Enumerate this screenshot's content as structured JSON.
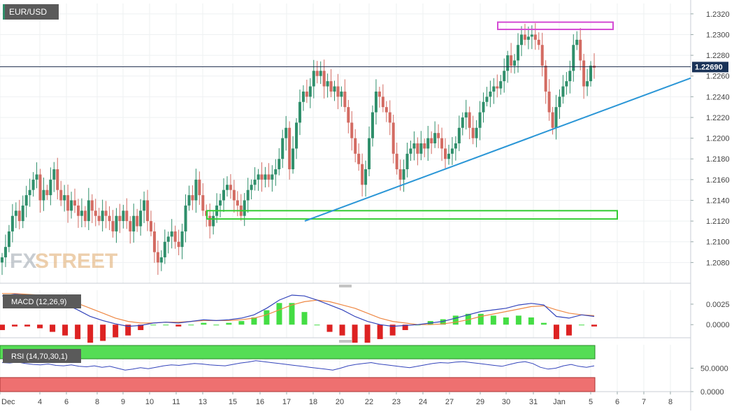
{
  "symbol": "EUR/USD",
  "last_price": "1.22690",
  "watermark": {
    "part1": "FX",
    "part2": "STREET"
  },
  "colors": {
    "up": "#2f8f6b",
    "down": "#d36b62",
    "trendline": "#2a96d6",
    "support_zone": "#33cc33",
    "resistance_zone": "#d44bd4",
    "macd_line": "#3344bb",
    "signal_line": "#ee8844",
    "hist_pos": "#44dd44",
    "hist_neg": "#dd2222",
    "rsi_line": "#3344bb",
    "rsi_upper_band": "#55dd55",
    "rsi_lower_band": "#ee7070",
    "price_line": "#1a2a4a",
    "badge_bg": "#1a3358"
  },
  "chart_data": [
    {
      "type": "candlestick",
      "name": "price",
      "ylim": [
        1.206,
        1.233
      ],
      "y_ticks": [
        "1.2320",
        "1.2300",
        "1.2280",
        "1.2260",
        "1.2240",
        "1.2220",
        "1.2200",
        "1.2180",
        "1.2160",
        "1.2140",
        "1.2120",
        "1.2100",
        "1.2080"
      ],
      "x_ticks": [
        "Dec",
        "4",
        "6",
        "8",
        "9",
        "10",
        "11",
        "13",
        "15",
        "16",
        "17",
        "18",
        "20",
        "22",
        "23",
        "24",
        "27",
        "29",
        "30",
        "31",
        "Jan",
        "5",
        "6",
        "7",
        "8"
      ],
      "last_value": 1.2269,
      "annotations": {
        "resistance_zone": [
          1.2305,
          1.2312
        ],
        "support_zone": [
          1.2122,
          1.213
        ],
        "trendline": {
          "from": 1.212,
          "to": 1.2258
        }
      },
      "close": [
        1.2085,
        1.2095,
        1.211,
        1.2125,
        1.213,
        1.212,
        1.2135,
        1.2145,
        1.215,
        1.216,
        1.2165,
        1.214,
        1.215,
        1.2145,
        1.216,
        1.217,
        1.215,
        1.214,
        1.2145,
        1.213,
        1.214,
        1.2135,
        1.2125,
        1.213,
        1.212,
        1.214,
        1.213,
        1.2125,
        1.212,
        1.213,
        1.2125,
        1.212,
        1.211,
        1.2125,
        1.212,
        1.213,
        1.212,
        1.211,
        1.2125,
        1.2115,
        1.213,
        1.214,
        1.212,
        1.211,
        1.209,
        1.208,
        1.2085,
        1.21,
        1.2105,
        1.211,
        1.21,
        1.2095,
        1.211,
        1.2135,
        1.2145,
        1.214,
        1.216,
        1.2145,
        1.213,
        1.2125,
        1.2115,
        1.2125,
        1.2135,
        1.214,
        1.215,
        1.2155,
        1.215,
        1.214,
        1.2135,
        1.2125,
        1.214,
        1.215,
        1.2155,
        1.216,
        1.2165,
        1.216,
        1.2165,
        1.216,
        1.2165,
        1.217,
        1.218,
        1.22,
        1.221,
        1.217,
        1.219,
        1.2215,
        1.2235,
        1.2245,
        1.224,
        1.225,
        1.2265,
        1.226,
        1.2265,
        1.225,
        1.2255,
        1.2245,
        1.225,
        1.224,
        1.2245,
        1.223,
        1.2215,
        1.22,
        1.2185,
        1.2175,
        1.2155,
        1.217,
        1.22,
        1.2225,
        1.2245,
        1.224,
        1.223,
        1.2225,
        1.2215,
        1.2185,
        1.217,
        1.216,
        1.217,
        1.2185,
        1.219,
        1.2195,
        1.2185,
        1.2195,
        1.219,
        1.22,
        1.2195,
        1.2205,
        1.22,
        1.219,
        1.218,
        1.2185,
        1.219,
        1.2195,
        1.221,
        1.222,
        1.2225,
        1.221,
        1.22,
        1.221,
        1.2225,
        1.2235,
        1.224,
        1.2245,
        1.225,
        1.2248,
        1.2255,
        1.2265,
        1.228,
        1.227,
        1.2275,
        1.229,
        1.23,
        1.2295,
        1.2298,
        1.23,
        1.2295,
        1.229,
        1.227,
        1.2245,
        1.2225,
        1.221,
        1.223,
        1.224,
        1.225,
        1.2255,
        1.2265,
        1.229,
        1.2295,
        1.2275,
        1.225,
        1.2255,
        1.227,
        1.2268
      ],
      "volatility": 0.0012
    },
    {
      "type": "line",
      "name": "MACD (12,26,9)",
      "label": "MACD (12,26,9)",
      "ylim": [
        -0.0016,
        0.0042
      ],
      "y_ticks": [
        "0.0025",
        "0.0000"
      ],
      "series": [
        {
          "name": "macd",
          "values": [
            0.0035,
            0.0037,
            0.0036,
            0.0034,
            0.003,
            0.0025,
            0.0018,
            0.001,
            0.0005,
            0.0001,
            -0.0002,
            -0.0001,
            0.0002,
            0.0003,
            0.0002,
            0.0004,
            0.0006,
            0.0005,
            0.0006,
            0.0008,
            0.0012,
            0.002,
            0.003,
            0.0036,
            0.0035,
            0.003,
            0.0024,
            0.0018,
            0.001,
            0.0004,
            0.0,
            -0.0002,
            -0.0001,
            0.0,
            0.0002,
            0.0004,
            0.0008,
            0.0012,
            0.0016,
            0.0018,
            0.002,
            0.0024,
            0.0026,
            0.0024,
            0.001,
            0.0008,
            0.0012,
            0.001
          ]
        },
        {
          "name": "signal",
          "values": [
            0.0038,
            0.0038,
            0.0037,
            0.0036,
            0.0034,
            0.0031,
            0.0026,
            0.002,
            0.0014,
            0.0008,
            0.0004,
            0.0002,
            0.0002,
            0.0003,
            0.0003,
            0.0004,
            0.0005,
            0.0005,
            0.0005,
            0.0006,
            0.0008,
            0.0012,
            0.0018,
            0.0024,
            0.0028,
            0.003,
            0.0028,
            0.0024,
            0.002,
            0.0014,
            0.0008,
            0.0004,
            0.0002,
            0.0,
            0.0,
            0.0001,
            0.0003,
            0.0006,
            0.001,
            0.0013,
            0.0016,
            0.0019,
            0.0022,
            0.0023,
            0.0018,
            0.0014,
            0.0012,
            0.0011
          ]
        }
      ]
    },
    {
      "type": "line",
      "name": "RSI (14,70,30,1)",
      "label": "RSI (14,70,30,1)",
      "ylim": [
        0,
        100
      ],
      "y_ticks": [
        "50.0000",
        "0.0000"
      ],
      "bands": {
        "overbought": 70,
        "oversold": 30
      },
      "values": [
        62,
        61,
        63,
        60,
        58,
        57,
        59,
        56,
        55,
        57,
        54,
        53,
        55,
        52,
        54,
        50,
        46,
        48,
        51,
        49,
        52,
        55,
        57,
        56,
        58,
        60,
        59,
        57,
        56,
        55,
        58,
        61,
        63,
        66,
        64,
        62,
        60,
        58,
        56,
        54,
        52,
        50,
        48,
        46,
        50,
        55,
        58,
        60,
        62,
        59,
        57,
        55,
        53,
        51,
        54,
        57,
        60,
        62,
        61,
        63,
        64,
        62,
        60,
        58,
        56,
        54,
        58,
        62,
        64,
        60,
        52,
        48,
        50,
        55,
        58,
        54,
        52,
        55
      ]
    }
  ]
}
